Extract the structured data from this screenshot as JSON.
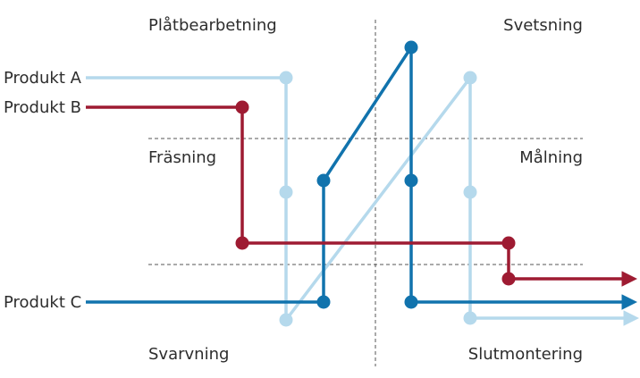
{
  "departments": {
    "platbearbetning": "Plåtbearbetning",
    "svetsning": "Svetsning",
    "frasning": "Fräsning",
    "malning": "Målning",
    "svarvning": "Svarvning",
    "slutmontering": "Slutmontering"
  },
  "products": {
    "a": {
      "label": "Produkt A",
      "color": "#b5d9ec"
    },
    "b": {
      "label": "Produkt B",
      "color": "#9e1b32"
    },
    "c": {
      "label": "Produkt C",
      "color": "#1173ad"
    }
  },
  "divider_color": "#555555"
}
